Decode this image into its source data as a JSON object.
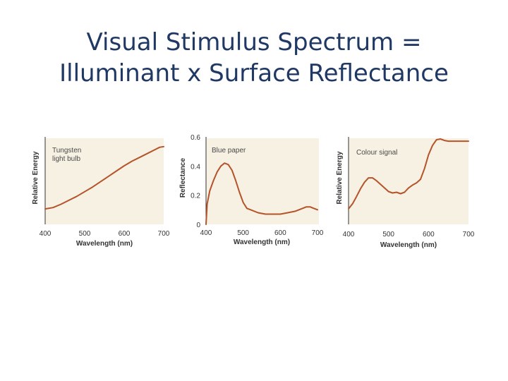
{
  "slide": {
    "title_line1": "Visual Stimulus Spectrum =",
    "title_line2": "Illuminant x Surface Reflectance"
  },
  "colors": {
    "title": "#1f3864",
    "curve": "#b5532a",
    "panel_background": "#f6f1e2"
  },
  "chart_data": [
    {
      "type": "line",
      "annotation": "Tungsten light bulb",
      "annotation_lines": [
        "Tungsten",
        "light bulb"
      ],
      "xlabel": "Wavelength (nm)",
      "ylabel": "Relative Energy",
      "xlim": [
        400,
        700
      ],
      "xticks": [
        400,
        500,
        600,
        700
      ],
      "xtick_labels": [
        "400",
        "500",
        "600",
        "700"
      ],
      "ylim": [
        0,
        1
      ],
      "yticks": [],
      "ytick_labels": [],
      "series": [
        {
          "x": [
            400,
            420,
            440,
            460,
            480,
            500,
            520,
            540,
            560,
            580,
            600,
            620,
            640,
            660,
            680,
            690,
            700
          ],
          "values": [
            0.02,
            0.04,
            0.09,
            0.15,
            0.21,
            0.28,
            0.35,
            0.43,
            0.51,
            0.59,
            0.67,
            0.74,
            0.8,
            0.86,
            0.92,
            0.95,
            0.96
          ]
        }
      ]
    },
    {
      "type": "line",
      "annotation": "Blue paper",
      "annotation_lines": [
        "Blue paper"
      ],
      "xlabel": "Wavelength (nm)",
      "ylabel": "Reflectance",
      "xlim": [
        400,
        700
      ],
      "xticks": [
        400,
        500,
        600,
        700
      ],
      "xtick_labels": [
        "400",
        "500",
        "600",
        "700"
      ],
      "ylim": [
        0,
        0.6
      ],
      "yticks": [
        0,
        0.2,
        0.4,
        0.6
      ],
      "ytick_labels": [
        "0",
        "0.2",
        "0.4",
        "0.6"
      ],
      "series": [
        {
          "x": [
            400,
            403,
            410,
            420,
            430,
            440,
            450,
            460,
            470,
            480,
            490,
            500,
            510,
            520,
            540,
            560,
            580,
            600,
            620,
            640,
            660,
            670,
            680,
            690,
            700
          ],
          "values": [
            0.0,
            0.14,
            0.23,
            0.3,
            0.36,
            0.4,
            0.42,
            0.41,
            0.37,
            0.3,
            0.22,
            0.15,
            0.11,
            0.1,
            0.08,
            0.07,
            0.07,
            0.07,
            0.08,
            0.09,
            0.11,
            0.12,
            0.12,
            0.11,
            0.1
          ]
        }
      ]
    },
    {
      "type": "line",
      "annotation": "Colour signal",
      "annotation_lines": [
        "Colour signal"
      ],
      "xlabel": "Wavelength (nm)",
      "ylabel": "Relative Energy",
      "xlim": [
        400,
        700
      ],
      "xticks": [
        400,
        500,
        600,
        700
      ],
      "xtick_labels": [
        "400",
        "500",
        "600",
        "700"
      ],
      "ylim": [
        0,
        1
      ],
      "yticks": [],
      "ytick_labels": [],
      "series": [
        {
          "x": [
            400,
            410,
            420,
            430,
            440,
            450,
            460,
            470,
            480,
            490,
            500,
            510,
            520,
            530,
            540,
            550,
            560,
            570,
            580,
            590,
            600,
            610,
            620,
            630,
            640,
            650,
            660,
            670,
            680,
            690,
            700
          ],
          "values": [
            0.02,
            0.09,
            0.19,
            0.3,
            0.39,
            0.45,
            0.45,
            0.41,
            0.36,
            0.31,
            0.26,
            0.24,
            0.25,
            0.23,
            0.25,
            0.31,
            0.35,
            0.38,
            0.43,
            0.58,
            0.77,
            0.9,
            0.98,
            0.99,
            0.97,
            0.96,
            0.96,
            0.96,
            0.96,
            0.96,
            0.96
          ]
        }
      ]
    }
  ]
}
